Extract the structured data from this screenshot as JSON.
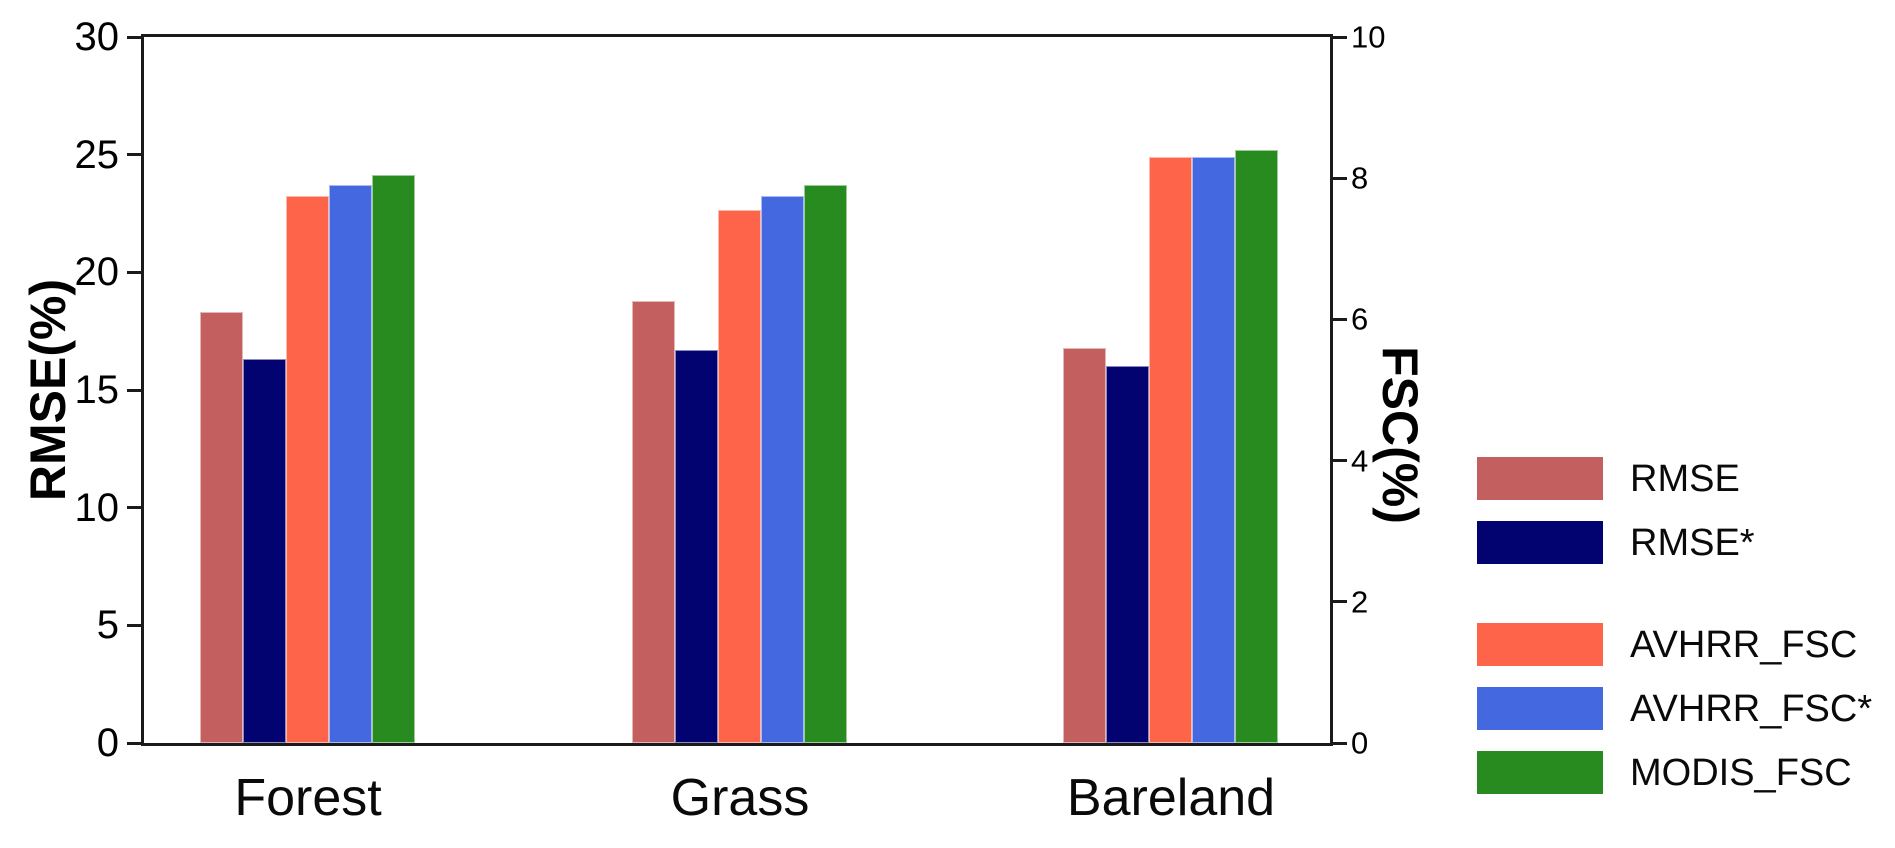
{
  "chart_data": {
    "type": "bar",
    "title": "",
    "categories": [
      "Forest",
      "Grass",
      "Bareland"
    ],
    "series": [
      {
        "name": "RMSE",
        "axis": "left",
        "color": "#c35f5f",
        "values": [
          18.3,
          18.8,
          16.8
        ]
      },
      {
        "name": "RMSE*",
        "axis": "left",
        "color": "#020270",
        "values": [
          16.3,
          16.7,
          16.0
        ]
      },
      {
        "name": "AVHRR_FSC",
        "axis": "right",
        "color": "#fd6449",
        "values": [
          7.75,
          7.55,
          8.3
        ]
      },
      {
        "name": "AVHRR_FSC*",
        "axis": "right",
        "color": "#4468df",
        "values": [
          7.9,
          7.75,
          8.3
        ]
      },
      {
        "name": "MODIS_FSC",
        "axis": "right",
        "color": "#278b20",
        "values": [
          8.05,
          7.9,
          8.4
        ]
      }
    ],
    "left_axis": {
      "label": "RMSE(%)",
      "range": [
        0,
        30
      ],
      "ticks": [
        0,
        5,
        10,
        15,
        20,
        25,
        30
      ]
    },
    "right_axis": {
      "label": "FSC(%)",
      "range": [
        0,
        10
      ],
      "ticks": [
        0,
        2,
        4,
        6,
        8,
        10
      ]
    },
    "legend": {
      "position": "right",
      "groups": [
        [
          "RMSE",
          "RMSE*"
        ],
        [
          "AVHRR_FSC",
          "AVHRR_FSC*",
          "MODIS_FSC"
        ]
      ]
    },
    "grid": false,
    "spine_color": "#1b1b1b",
    "background_color": "#ffffff"
  }
}
